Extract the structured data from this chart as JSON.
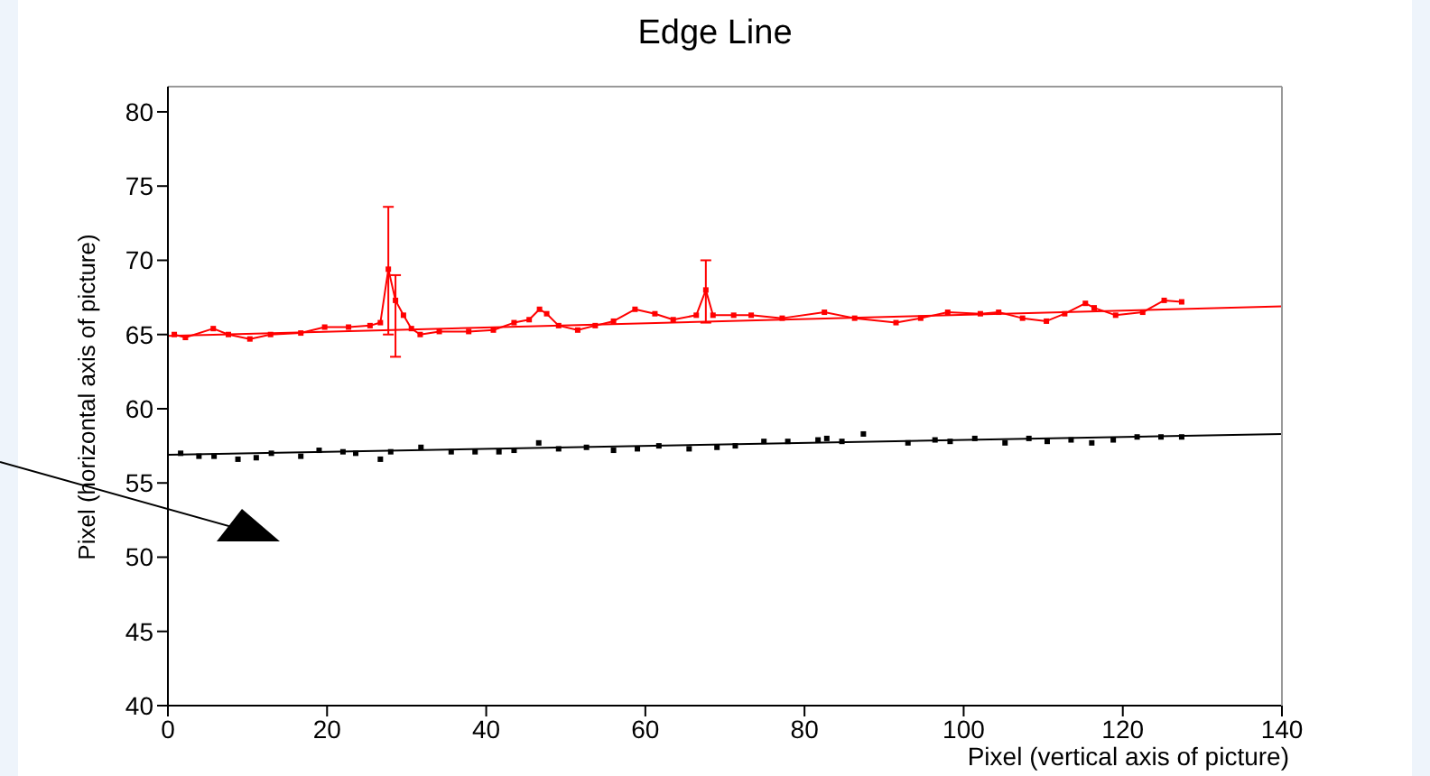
{
  "chart_data": {
    "type": "line",
    "title": "Edge Line",
    "xlabel": "Pixel (vertical axis of picture)",
    "ylabel": "Pixel (horizontal axis of picture)",
    "xlim": [
      0,
      140
    ],
    "xticks": [
      0,
      20,
      40,
      60,
      80,
      100,
      120,
      140
    ],
    "ylim": [
      40,
      81.7
    ],
    "yticks": [
      40,
      45,
      50,
      55,
      60,
      65,
      70,
      75,
      80
    ],
    "grid": false,
    "marker": "square",
    "series": [
      {
        "type": "line",
        "color": "#ff0000",
        "x": [
          0.8,
          2.2,
          5.7,
          7.6,
          10.3,
          12.9,
          16.7,
          19.7,
          22.7,
          25.4,
          26.7,
          27.7,
          28.6,
          29.6,
          30.6,
          31.7,
          34.1,
          37.8,
          40.9,
          43.5,
          45.4,
          46.7,
          47.6,
          49.1,
          51.5,
          53.7,
          56,
          58.7,
          61.2,
          63.5,
          66.4,
          67.6,
          68.5,
          71.1,
          73.3,
          77.2,
          82.5,
          86.3,
          91.5,
          94.6,
          98,
          102.1,
          104.4,
          107.4,
          110.4,
          112.7,
          115.3,
          116.4,
          119.1,
          122.5,
          125.2,
          127.4
        ],
        "values": [
          65.0,
          64.8,
          65.4,
          65.0,
          64.7,
          65.0,
          65.1,
          65.5,
          65.5,
          65.6,
          65.8,
          69.4,
          67.3,
          66.3,
          65.4,
          65.0,
          65.2,
          65.2,
          65.3,
          65.8,
          66.0,
          66.7,
          66.4,
          65.6,
          65.3,
          65.6,
          65.9,
          66.7,
          66.4,
          66.0,
          66.3,
          68.0,
          66.3,
          66.3,
          66.3,
          66.1,
          66.5,
          66.1,
          65.8,
          66.1,
          66.5,
          66.4,
          66.5,
          66.1,
          65.9,
          66.4,
          67.1,
          66.8,
          66.3,
          66.5,
          67.3,
          67.2
        ],
        "errors": [
          null,
          null,
          null,
          null,
          null,
          null,
          null,
          null,
          null,
          null,
          null,
          [
            65.0,
            73.6
          ],
          [
            63.5,
            69.0
          ],
          null,
          null,
          null,
          null,
          null,
          null,
          null,
          null,
          null,
          null,
          null,
          null,
          null,
          null,
          null,
          null,
          null,
          null,
          [
            65.8,
            70.0
          ],
          null,
          null,
          null,
          null,
          null,
          null,
          null,
          null,
          null,
          null,
          null,
          null,
          null,
          null,
          null,
          null,
          null,
          null,
          null,
          null
        ]
      },
      {
        "type": "line",
        "color": "#ff0000",
        "marker": "none",
        "x": [
          0,
          140
        ],
        "values": [
          64.9,
          66.9
        ]
      },
      {
        "type": "scatter",
        "color": "#000000",
        "x": [
          1.6,
          3.9,
          5.8,
          8.8,
          11.1,
          13,
          16.7,
          19,
          22,
          23.6,
          26.7,
          28,
          31.8,
          35.6,
          38.6,
          41.6,
          43.5,
          46.6,
          49.1,
          52.6,
          56,
          59,
          61.7,
          65.5,
          69,
          71.3,
          74.9,
          77.9,
          81.7,
          82.8,
          84.7,
          87.4,
          93.0,
          96.4,
          98.3,
          101.4,
          105.2,
          108.2,
          110.5,
          113.5,
          116.1,
          118.8,
          121.8,
          124.8,
          127.4
        ],
        "values": [
          57.0,
          56.8,
          56.8,
          56.6,
          56.7,
          57.0,
          56.8,
          57.2,
          57.1,
          57.0,
          56.6,
          57.1,
          57.4,
          57.1,
          57.1,
          57.1,
          57.2,
          57.7,
          57.3,
          57.4,
          57.2,
          57.3,
          57.5,
          57.3,
          57.4,
          57.5,
          57.8,
          57.8,
          57.9,
          58.0,
          57.8,
          58.3,
          57.7,
          57.9,
          57.8,
          58.0,
          57.7,
          58.0,
          57.8,
          57.9,
          57.7,
          57.9,
          58.1,
          58.1,
          58.1
        ]
      },
      {
        "type": "line",
        "color": "#000000",
        "marker": "none",
        "x": [
          0,
          140
        ],
        "values": [
          56.9,
          58.3
        ]
      }
    ]
  }
}
